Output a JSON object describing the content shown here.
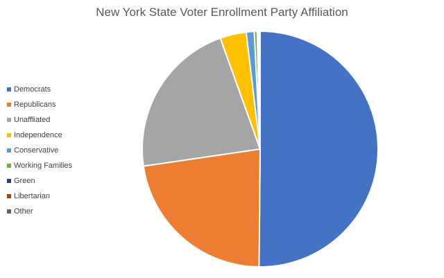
{
  "chart_data": {
    "type": "pie",
    "title": "New York State Voter Enrollment Party Affiliation",
    "legend_position": "left",
    "slices": [
      {
        "label": "Democrats",
        "value": 50.3,
        "color": "#4472C4"
      },
      {
        "label": "Republicans",
        "value": 22.6,
        "color": "#ED7D31"
      },
      {
        "label": "Unaffliated",
        "value": 21.9,
        "color": "#A5A5A5"
      },
      {
        "label": "Independence",
        "value": 3.6,
        "color": "#FFC000"
      },
      {
        "label": "Conservative",
        "value": 1.1,
        "color": "#5B9BD5"
      },
      {
        "label": "Working Families",
        "value": 0.4,
        "color": "#70AD47"
      },
      {
        "label": "Green",
        "value": 0.2,
        "color": "#264478"
      },
      {
        "label": "Libertarian",
        "value": 0.1,
        "color": "#9E480E"
      },
      {
        "label": "Other",
        "value": 0.1,
        "color": "#636363"
      }
    ]
  }
}
